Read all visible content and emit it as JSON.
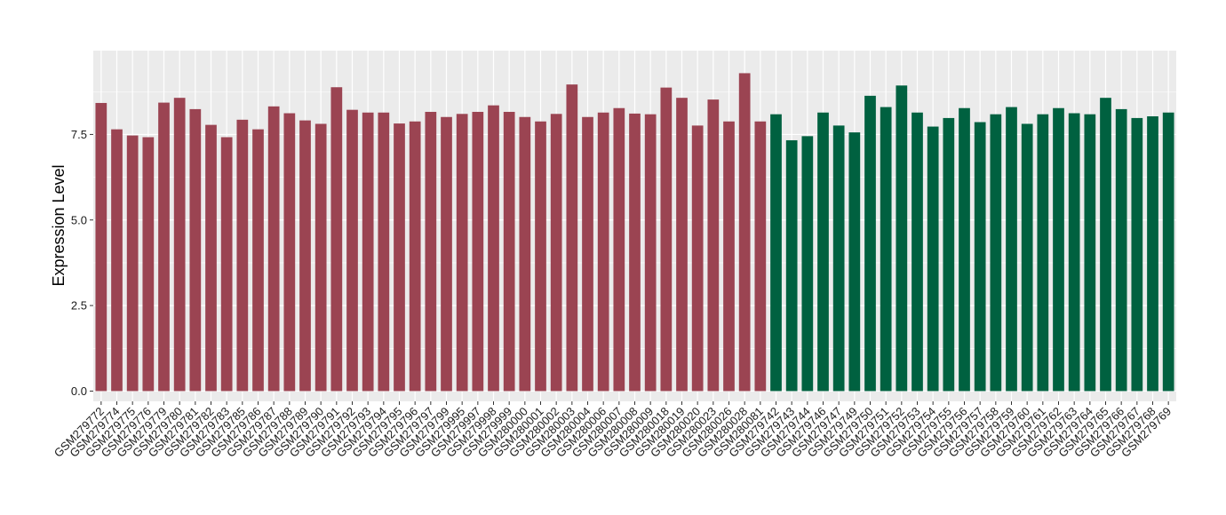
{
  "chart_data": {
    "type": "bar",
    "title": "",
    "xlabel": "",
    "ylabel": "Expression Level",
    "ylim": [
      -0.3,
      9.95
    ],
    "yticks": [
      0.0,
      2.5,
      5.0,
      7.5
    ],
    "ytick_labels": [
      "0.0",
      "2.5",
      "5.0",
      "7.5"
    ],
    "grid": true,
    "legend": "none",
    "categories": [
      "GSM279772",
      "GSM279774",
      "GSM279775",
      "GSM279776",
      "GSM279779",
      "GSM279780",
      "GSM279781",
      "GSM279782",
      "GSM279783",
      "GSM279785",
      "GSM279786",
      "GSM279787",
      "GSM279788",
      "GSM279789",
      "GSM279790",
      "GSM279791",
      "GSM279792",
      "GSM279793",
      "GSM279794",
      "GSM279795",
      "GSM279796",
      "GSM279797",
      "GSM279799",
      "GSM279995",
      "GSM279997",
      "GSM279998",
      "GSM279999",
      "GSM280000",
      "GSM280001",
      "GSM280002",
      "GSM280003",
      "GSM280004",
      "GSM280006",
      "GSM280007",
      "GSM280008",
      "GSM280009",
      "GSM280018",
      "GSM280019",
      "GSM280020",
      "GSM280023",
      "GSM280026",
      "GSM280028",
      "GSM280081",
      "GSM279742",
      "GSM279743",
      "GSM279744",
      "GSM279746",
      "GSM279747",
      "GSM279749",
      "GSM279750",
      "GSM279751",
      "GSM279752",
      "GSM279753",
      "GSM279754",
      "GSM279755",
      "GSM279756",
      "GSM279757",
      "GSM279758",
      "GSM279759",
      "GSM279760",
      "GSM279761",
      "GSM279762",
      "GSM279763",
      "GSM279764",
      "GSM279765",
      "GSM279766",
      "GSM279767",
      "GSM279768",
      "GSM279769"
    ],
    "values": [
      8.42,
      7.65,
      7.47,
      7.42,
      8.43,
      8.57,
      8.24,
      7.78,
      7.42,
      7.93,
      7.65,
      8.32,
      8.12,
      7.91,
      7.81,
      8.88,
      8.22,
      8.14,
      8.14,
      7.82,
      7.88,
      8.16,
      8.01,
      8.1,
      8.16,
      8.35,
      8.16,
      8.01,
      7.88,
      8.1,
      8.96,
      8.01,
      8.14,
      8.27,
      8.11,
      8.09,
      8.87,
      8.57,
      7.76,
      8.52,
      7.88,
      9.29,
      7.88,
      8.09,
      7.33,
      7.45,
      8.14,
      7.76,
      7.56,
      8.63,
      8.3,
      8.93,
      8.14,
      7.73,
      7.98,
      8.27,
      7.86,
      8.09,
      8.3,
      7.81,
      8.09,
      8.27,
      8.12,
      8.09,
      8.57,
      8.24,
      7.98,
      8.03,
      8.14
    ],
    "group_sizes": [
      43,
      26
    ],
    "colors": [
      "#9b4452",
      "#006140"
    ],
    "panel_background": "#ebebeb",
    "grid_color": "#ffffff"
  }
}
